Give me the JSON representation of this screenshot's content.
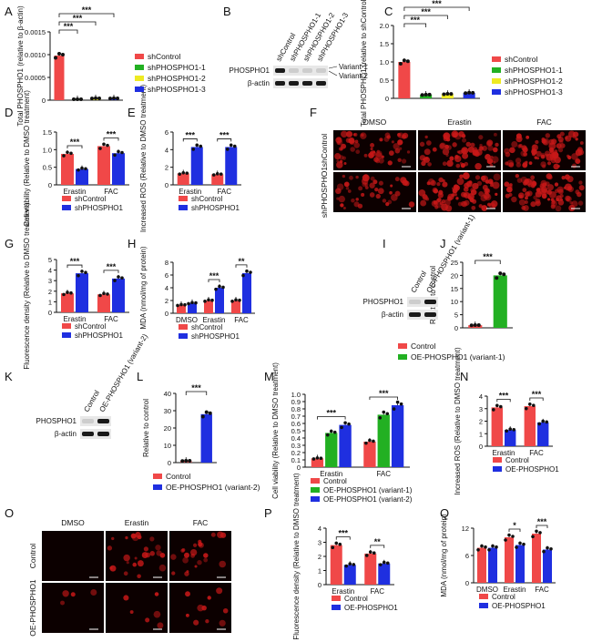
{
  "colors": {
    "red": "#f04848",
    "green": "#22b022",
    "yellow": "#eeea22",
    "blue": "#1f2fe0",
    "blot_bg": "#e8e8e8",
    "band": "#1a1a1a",
    "micro_bg": "#0c0000",
    "micro_cell": "#c81818"
  },
  "chart_data": [
    {
      "panel": "A",
      "type": "bar",
      "ylabel": "Total PHOSPHO1 (relative to β-actin)",
      "ylim": [
        0,
        0.0015
      ],
      "yticks": [
        "0",
        "0.0005",
        "0.0010",
        "0.0015"
      ],
      "categories": [
        "shControl",
        "shPHOSPHO1-1",
        "shPHOSPHO1-2",
        "shPHOSPHO1-3"
      ],
      "values": [
        0.00098,
        2e-05,
        4e-05,
        4e-05
      ],
      "legend": [
        "shControl",
        "shPHOSPHO1-1",
        "shPHOSPHO1-2",
        "shPHOSPHO1-3"
      ],
      "significance": [
        "***",
        "***",
        "***"
      ]
    },
    {
      "panel": "C",
      "type": "bar",
      "ylabel": "Total PHOSPHO1 (relative to shControl)",
      "ylim": [
        0,
        2.0
      ],
      "yticks": [
        "0",
        "0.5",
        "1.0",
        "1.5",
        "2.0"
      ],
      "categories": [
        "shControl",
        "shPHOSPHO1-1",
        "shPHOSPHO1-2",
        "shPHOSPHO1-3"
      ],
      "values": [
        1.0,
        0.1,
        0.12,
        0.15
      ],
      "legend": [
        "shControl",
        "shPHOSPHO1-1",
        "shPHOSPHO1-2",
        "shPHOSPHO1-3"
      ],
      "significance": [
        "***",
        "***",
        "***"
      ]
    },
    {
      "panel": "D",
      "type": "bar",
      "ylabel": "Cell viability (Relative to DMSO treatment)",
      "ylim": [
        0,
        1.5
      ],
      "yticks": [
        "0",
        "0.5",
        "1.0",
        "1.5"
      ],
      "categories": [
        "Erastin",
        "FAC"
      ],
      "series": [
        {
          "name": "shControl",
          "values": [
            0.88,
            1.1
          ]
        },
        {
          "name": "shPHOSPHO1",
          "values": [
            0.45,
            0.9
          ]
        }
      ],
      "significance": [
        "***",
        "***"
      ]
    },
    {
      "panel": "E",
      "type": "bar",
      "ylabel": "Increased ROS (Relative to DMSO treatment)",
      "ylim": [
        0,
        6
      ],
      "yticks": [
        "0",
        "2",
        "4",
        "6"
      ],
      "categories": [
        "Erastin",
        "FAC"
      ],
      "series": [
        {
          "name": "shControl",
          "values": [
            1.3,
            1.2
          ]
        },
        {
          "name": "shPHOSPHO1",
          "values": [
            4.3,
            4.3
          ]
        }
      ],
      "significance": [
        "***",
        "***"
      ]
    },
    {
      "panel": "G",
      "type": "bar",
      "ylabel": "Fluorescence density (Relative to DMSO treatment)",
      "ylim": [
        0,
        5
      ],
      "yticks": [
        "0",
        "1",
        "2",
        "3",
        "4",
        "5"
      ],
      "categories": [
        "Erastin",
        "FAC"
      ],
      "series": [
        {
          "name": "shControl",
          "values": [
            1.8,
            1.7
          ]
        },
        {
          "name": "shPHOSPHO1",
          "values": [
            3.7,
            3.2
          ]
        }
      ],
      "significance": [
        "***",
        "***"
      ]
    },
    {
      "panel": "H",
      "type": "bar",
      "ylabel": "MDA (nmol/mg of protein)",
      "ylim": [
        0,
        8
      ],
      "yticks": [
        "0",
        "2",
        "4",
        "6",
        "8"
      ],
      "categories": [
        "DMSO",
        "Erastin",
        "FAC"
      ],
      "series": [
        {
          "name": "shControl",
          "values": [
            1.3,
            2.0,
            2.0
          ]
        },
        {
          "name": "shPHOSPHO1",
          "values": [
            1.6,
            4.0,
            6.3
          ]
        }
      ],
      "significance": [
        "",
        "***",
        "**"
      ]
    },
    {
      "panel": "J",
      "type": "bar",
      "ylabel": "Relative to control",
      "ylim": [
        0,
        25
      ],
      "yticks": [
        "0",
        "5",
        "10",
        "15",
        "20",
        "25"
      ],
      "categories": [
        "Control",
        "OE-PHOSPHO1 (variant-1)"
      ],
      "values": [
        1,
        20
      ],
      "legend": [
        "Control",
        "OE-PHOSPHO1 (variant-1)"
      ],
      "significance": [
        "***"
      ]
    },
    {
      "panel": "L",
      "type": "bar",
      "ylabel": "Relative to control",
      "ylim": [
        0,
        40
      ],
      "yticks": [
        "0",
        "10",
        "20",
        "30",
        "40"
      ],
      "categories": [
        "Control",
        "OE-PHOSPHO1 (variant-2)"
      ],
      "values": [
        1,
        28
      ],
      "legend": [
        "Control",
        "OE-PHOSPHO1 (variant-2)"
      ],
      "significance": [
        "***"
      ]
    },
    {
      "panel": "M",
      "type": "bar",
      "ylabel": "Cell viability (Relative to DMSO treatment)",
      "ylim": [
        0,
        1.0
      ],
      "yticks": [
        "0",
        "0.1",
        "0.2",
        "0.3",
        "0.4",
        "0.5",
        "0.6",
        "0.7",
        "0.8",
        "0.9",
        "1.0"
      ],
      "categories": [
        "Erastin",
        "FAC"
      ],
      "series": [
        {
          "name": "Control",
          "values": [
            0.12,
            0.35
          ]
        },
        {
          "name": "OE-PHOSPHO1 (variant-1)",
          "values": [
            0.47,
            0.72
          ]
        },
        {
          "name": "OE-PHOSPHO1 (variant-2)",
          "values": [
            0.58,
            0.85
          ]
        }
      ],
      "significance": [
        "***",
        "***",
        "***",
        "**"
      ]
    },
    {
      "panel": "N",
      "type": "bar",
      "ylabel": "Increased ROS (Relative to DMSO treatment)",
      "ylim": [
        0,
        4
      ],
      "yticks": [
        "0",
        "1",
        "2",
        "3",
        "4"
      ],
      "categories": [
        "Erastin",
        "FAC"
      ],
      "series": [
        {
          "name": "Control",
          "values": [
            3.1,
            3.2
          ]
        },
        {
          "name": "OE-PHOSPHO1",
          "values": [
            1.3,
            1.9
          ]
        }
      ],
      "significance": [
        "***",
        "***"
      ]
    },
    {
      "panel": "P",
      "type": "bar",
      "ylabel": "Fluorescence density (Relative to DMSO treatment)",
      "ylim": [
        0,
        4
      ],
      "yticks": [
        "0",
        "1",
        "2",
        "3",
        "4"
      ],
      "categories": [
        "Erastin",
        "FAC"
      ],
      "series": [
        {
          "name": "Control",
          "values": [
            2.8,
            2.2
          ]
        },
        {
          "name": "OE-PHOSPHO1",
          "values": [
            1.4,
            1.5
          ]
        }
      ],
      "significance": [
        "***",
        "**"
      ]
    },
    {
      "panel": "Q",
      "type": "bar",
      "ylabel": "MDA (nmol/mg of protein)",
      "ylim": [
        0,
        12
      ],
      "yticks": [
        "0",
        "6",
        "12"
      ],
      "categories": [
        "DMSO",
        "Erastin",
        "FAC"
      ],
      "series": [
        {
          "name": "Control",
          "values": [
            7.7,
            10.0,
            10.8
          ]
        },
        {
          "name": "OE-PHOSPHO1",
          "values": [
            7.7,
            8.3,
            7.3
          ]
        }
      ],
      "significance": [
        "",
        "*",
        "***"
      ]
    }
  ],
  "panel_letters": [
    "A",
    "B",
    "C",
    "D",
    "E",
    "F",
    "G",
    "H",
    "I",
    "J",
    "K",
    "L",
    "M",
    "N",
    "O",
    "P",
    "Q"
  ],
  "blots": {
    "B": {
      "lanes": [
        "shControl",
        "shPHOSPHO1-1",
        "shPHOSPHO1-2",
        "shPHOSPHO1-3"
      ],
      "rows": [
        "PHOSPHO1",
        "β-actin"
      ],
      "variants": [
        "Variant-1",
        "Variant-2"
      ]
    },
    "I": {
      "lanes": [
        "Control",
        "OE-PHOSPHO1 (variant-1)"
      ],
      "rows": [
        "PHOSPHO1",
        "β-actin"
      ]
    },
    "K": {
      "lanes": [
        "Control",
        "OE-PHOSPHO1 (variant-2)"
      ],
      "rows": [
        "PHOSPHO1",
        "β-actin"
      ]
    }
  },
  "micrographs": {
    "F": {
      "columns": [
        "DMSO",
        "Erastin",
        "FAC"
      ],
      "rows": [
        "shControl",
        "shPHOSPHO1"
      ]
    },
    "O": {
      "columns": [
        "DMSO",
        "Erastin",
        "FAC"
      ],
      "rows": [
        "Control",
        "OE-PHOSPHO1"
      ]
    }
  }
}
